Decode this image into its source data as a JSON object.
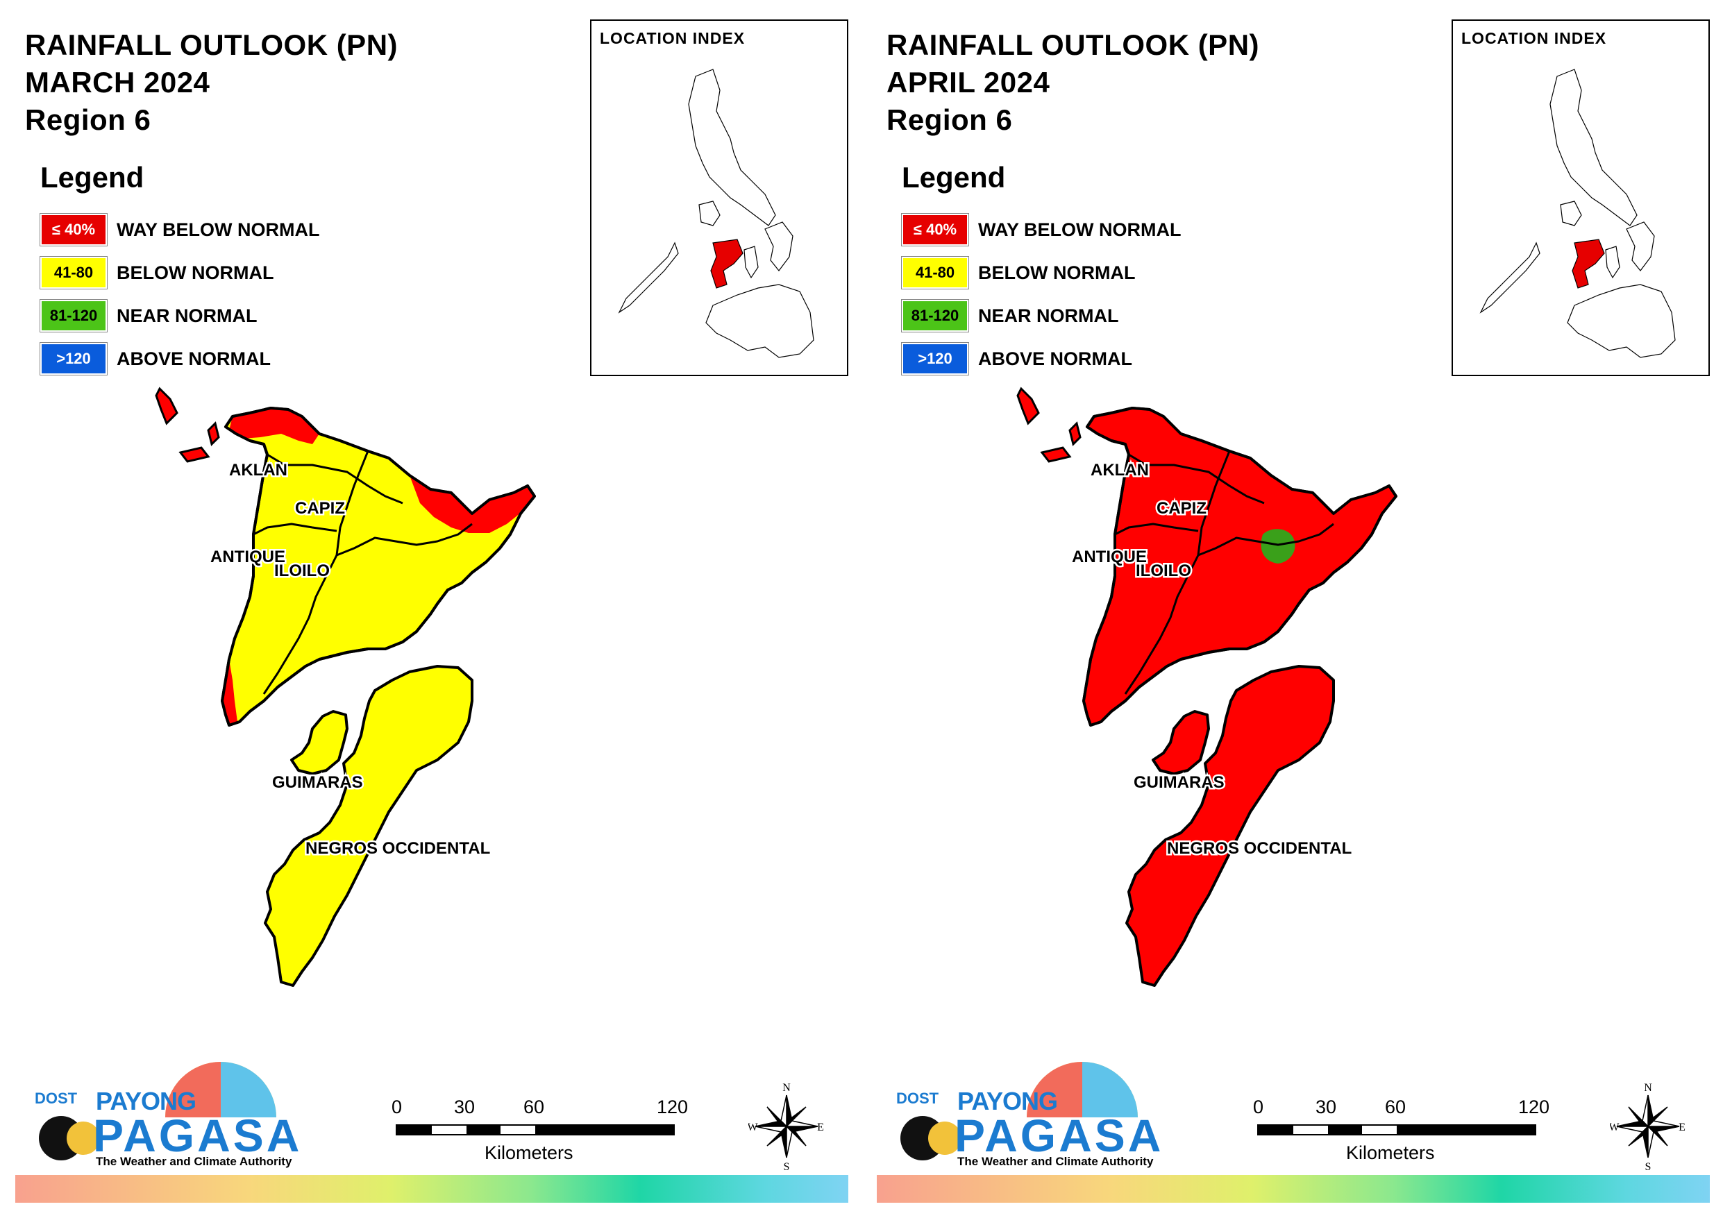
{
  "panels": [
    {
      "title": [
        "RAINFALL OUTLOOK (PN)",
        "MARCH 2024",
        "Region 6"
      ],
      "fills": {
        "island": "#ffff00",
        "ne": "#ff0000",
        "sw": "#ff0000",
        "negros": "#ffff00",
        "guimaras": "#ffff00",
        "north_isles": "#ff0000",
        "green": "none"
      }
    },
    {
      "title": [
        "RAINFALL OUTLOOK (PN)",
        "APRIL 2024",
        "Region 6"
      ],
      "fills": {
        "island": "#ff0000",
        "ne": "#ff0000",
        "sw": "#ff0000",
        "negros": "#ff0000",
        "guimaras": "#ff0000",
        "north_isles": "#ff0000",
        "green": "#3aa01a"
      }
    }
  ],
  "legend": {
    "title": "Legend",
    "items": [
      {
        "code": "≤ 40%",
        "label": "WAY BELOW NORMAL",
        "color": "#e60000",
        "text_color": "#ffffff"
      },
      {
        "code": "41-80",
        "label": "BELOW NORMAL",
        "color": "#ffff00",
        "text_color": "#000000"
      },
      {
        "code": "81-120",
        "label": "NEAR NORMAL",
        "color": "#4cc418",
        "text_color": "#000000"
      },
      {
        "code": ">120",
        "label": "ABOVE NORMAL",
        "color": "#0a5cdc",
        "text_color": "#ffffff"
      }
    ]
  },
  "location_index": {
    "label": "LOCATION INDEX"
  },
  "provinces": {
    "aklan": "AKLAN",
    "capiz": "CAPIZ",
    "antique": "ANTIQUE",
    "iloilo": "ILOILO",
    "guimaras": "GUIMARAS",
    "negros": "NEGROS OCCIDENTAL"
  },
  "scale": {
    "ticks": [
      "0",
      "30",
      "60",
      "120"
    ],
    "unit": "Kilometers"
  },
  "compass": {
    "n": "N",
    "s": "S",
    "e": "E",
    "w": "W"
  },
  "logo": {
    "dost": "DOST",
    "payong": "PAYONG",
    "pagasa": "PAGASA",
    "tagline": "The Weather and Climate Authority"
  }
}
